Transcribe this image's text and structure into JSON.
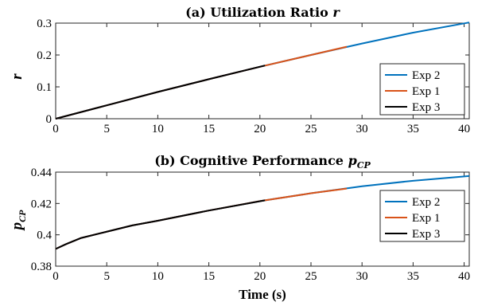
{
  "chart_data": [
    {
      "type": "line",
      "title_main": "(a) Utilization Ratio",
      "title_var": "r",
      "ylabel": "r",
      "xlabel": "",
      "xlim": [
        0,
        40.5
      ],
      "ylim": [
        0,
        0.3
      ],
      "xticks": [
        "0",
        "5",
        "10",
        "15",
        "20",
        "25",
        "30",
        "35",
        "40"
      ],
      "yticks": [
        "0",
        "0.1",
        "0.2",
        "0.3"
      ],
      "grid": false,
      "legend_position": "bottom-right",
      "series": [
        {
          "name": "Exp 2",
          "color": "#0072BD",
          "x": [
            0,
            5,
            10,
            15,
            20,
            25,
            30,
            35,
            40.5
          ],
          "y": [
            0,
            0.042,
            0.084,
            0.124,
            0.163,
            0.2,
            0.236,
            0.27,
            0.302
          ]
        },
        {
          "name": "Exp 1",
          "color": "#D95319",
          "x": [
            0,
            5,
            10,
            15,
            20,
            25,
            28.5
          ],
          "y": [
            0,
            0.042,
            0.084,
            0.124,
            0.163,
            0.2,
            0.226
          ]
        },
        {
          "name": "Exp 3",
          "color": "#000000",
          "x": [
            0,
            5,
            10,
            15,
            20.5
          ],
          "y": [
            0,
            0.042,
            0.084,
            0.124,
            0.167
          ]
        }
      ]
    },
    {
      "type": "line",
      "title_main": "(b) Cognitive Performance",
      "title_var": "p",
      "title_sub": "CP",
      "ylabel": "p",
      "ylabel_sub": "CP",
      "xlabel": "Time (s)",
      "xlim": [
        0,
        40.5
      ],
      "ylim": [
        0.38,
        0.44
      ],
      "xticks": [
        "0",
        "5",
        "10",
        "15",
        "20",
        "25",
        "30",
        "35",
        "40"
      ],
      "yticks": [
        "0.38",
        "0.4",
        "0.42",
        "0.44"
      ],
      "grid": false,
      "legend_position": "right",
      "series": [
        {
          "name": "Exp 2",
          "color": "#0072BD",
          "x": [
            0,
            1,
            2.5,
            5,
            7.5,
            10,
            15,
            20,
            25,
            30,
            35,
            40.5
          ],
          "y": [
            0.391,
            0.394,
            0.398,
            0.402,
            0.406,
            0.409,
            0.4155,
            0.4215,
            0.4265,
            0.431,
            0.4345,
            0.4375
          ]
        },
        {
          "name": "Exp 1",
          "color": "#D95319",
          "x": [
            0,
            1,
            2.5,
            5,
            7.5,
            10,
            15,
            20,
            25,
            28.5
          ],
          "y": [
            0.391,
            0.394,
            0.398,
            0.402,
            0.406,
            0.409,
            0.4155,
            0.4215,
            0.4265,
            0.4295
          ]
        },
        {
          "name": "Exp 3",
          "color": "#000000",
          "x": [
            0,
            1,
            2.5,
            5,
            7.5,
            10,
            15,
            20.5
          ],
          "y": [
            0.391,
            0.394,
            0.398,
            0.402,
            0.406,
            0.409,
            0.4155,
            0.422
          ]
        }
      ]
    }
  ]
}
